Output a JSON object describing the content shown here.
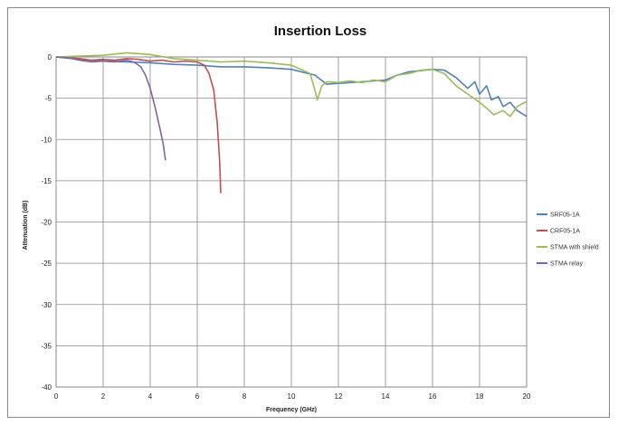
{
  "chart_data": {
    "type": "line",
    "title": "Insertion Loss",
    "xlabel": "Frequency (GHz)",
    "ylabel": "Attenuation (dB)",
    "xlim": [
      0,
      20
    ],
    "ylim": [
      -40,
      0
    ],
    "xticks": [
      0,
      2,
      4,
      6,
      8,
      10,
      12,
      14,
      16,
      18,
      20
    ],
    "yticks": [
      0,
      -5,
      -10,
      -15,
      -20,
      -25,
      -30,
      -35,
      -40
    ],
    "grid": true,
    "legend_position": "right",
    "series": [
      {
        "name": "SRF05-1A",
        "color": "#4f81bd",
        "points": [
          [
            0,
            0
          ],
          [
            1,
            -0.3
          ],
          [
            2,
            -0.5
          ],
          [
            3,
            -0.6
          ],
          [
            4,
            -0.7
          ],
          [
            5,
            -0.9
          ],
          [
            6,
            -1.0
          ],
          [
            7,
            -1.2
          ],
          [
            8,
            -1.2
          ],
          [
            9,
            -1.3
          ],
          [
            10,
            -1.5
          ],
          [
            11,
            -2.2
          ],
          [
            11.5,
            -3.3
          ],
          [
            12,
            -3.2
          ],
          [
            13,
            -3.0
          ],
          [
            14,
            -2.8
          ],
          [
            14.5,
            -2.2
          ],
          [
            15,
            -1.8
          ],
          [
            16,
            -1.5
          ],
          [
            16.5,
            -1.6
          ],
          [
            17,
            -2.5
          ],
          [
            17.5,
            -3.8
          ],
          [
            17.8,
            -3.0
          ],
          [
            18,
            -4.5
          ],
          [
            18.3,
            -3.5
          ],
          [
            18.5,
            -5.2
          ],
          [
            18.8,
            -4.8
          ],
          [
            19,
            -6.0
          ],
          [
            19.3,
            -5.5
          ],
          [
            19.6,
            -6.5
          ],
          [
            20,
            -7.2
          ]
        ]
      },
      {
        "name": "CRF05-1A",
        "color": "#c0504d",
        "points": [
          [
            0,
            0
          ],
          [
            0.5,
            -0.1
          ],
          [
            1,
            -0.2
          ],
          [
            1.5,
            -0.4
          ],
          [
            2,
            -0.3
          ],
          [
            2.5,
            -0.4
          ],
          [
            3,
            -0.2
          ],
          [
            3.5,
            -0.3
          ],
          [
            4,
            -0.5
          ],
          [
            4.5,
            -0.4
          ],
          [
            5,
            -0.6
          ],
          [
            5.5,
            -0.5
          ],
          [
            6,
            -0.6
          ],
          [
            6.3,
            -1.0
          ],
          [
            6.5,
            -2.0
          ],
          [
            6.7,
            -4.0
          ],
          [
            6.85,
            -8.0
          ],
          [
            6.95,
            -12.5
          ],
          [
            7.0,
            -16.5
          ]
        ]
      },
      {
        "name": "STMA with shield",
        "color": "#9bbb59",
        "points": [
          [
            0,
            0
          ],
          [
            1,
            0.1
          ],
          [
            2,
            0.2
          ],
          [
            3,
            0.5
          ],
          [
            4,
            0.3
          ],
          [
            5,
            -0.2
          ],
          [
            6,
            -0.4
          ],
          [
            7,
            -0.6
          ],
          [
            8,
            -0.5
          ],
          [
            9,
            -0.7
          ],
          [
            10,
            -1.0
          ],
          [
            10.8,
            -2.0
          ],
          [
            11.0,
            -4.0
          ],
          [
            11.1,
            -5.2
          ],
          [
            11.3,
            -3.5
          ],
          [
            11.5,
            -3.0
          ],
          [
            12,
            -3.1
          ],
          [
            12.5,
            -2.9
          ],
          [
            13,
            -3.1
          ],
          [
            13.5,
            -2.8
          ],
          [
            14,
            -3.0
          ],
          [
            14.5,
            -2.2
          ],
          [
            15,
            -2.0
          ],
          [
            15.5,
            -1.6
          ],
          [
            16,
            -1.5
          ],
          [
            16.5,
            -2.0
          ],
          [
            17,
            -3.5
          ],
          [
            17.5,
            -4.5
          ],
          [
            18,
            -5.5
          ],
          [
            18.3,
            -6.2
          ],
          [
            18.6,
            -7.0
          ],
          [
            19,
            -6.5
          ],
          [
            19.3,
            -7.2
          ],
          [
            19.6,
            -6.0
          ],
          [
            20,
            -5.4
          ]
        ]
      },
      {
        "name": "STMA relay",
        "color": "#8064a2",
        "points": [
          [
            0,
            0
          ],
          [
            0.5,
            -0.1
          ],
          [
            1,
            -0.4
          ],
          [
            1.5,
            -0.6
          ],
          [
            2,
            -0.5
          ],
          [
            2.5,
            -0.6
          ],
          [
            3,
            -0.4
          ],
          [
            3.3,
            -0.6
          ],
          [
            3.6,
            -1.2
          ],
          [
            3.8,
            -2.2
          ],
          [
            4.0,
            -3.8
          ],
          [
            4.2,
            -6.0
          ],
          [
            4.4,
            -8.5
          ],
          [
            4.55,
            -10.5
          ],
          [
            4.65,
            -12.5
          ]
        ]
      }
    ]
  }
}
